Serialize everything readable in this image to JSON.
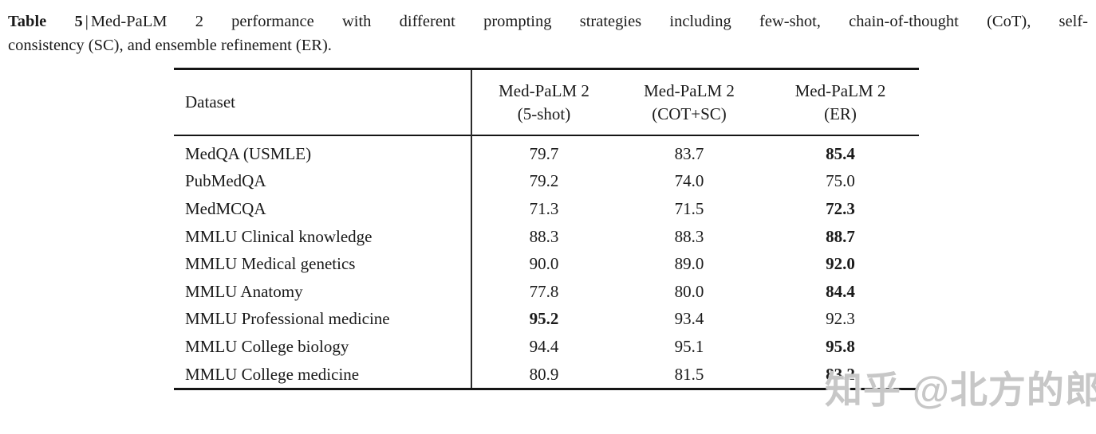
{
  "caption": {
    "label": "Table 5",
    "separator": "|",
    "line1_rest": "Med-PaLM 2 performance with different prompting strategies including few-shot, chain-of-thought (CoT), self-",
    "line2": "consistency (SC), and ensemble refinement (ER)."
  },
  "table": {
    "header": {
      "dataset": "Dataset",
      "col1_line1": "Med-PaLM 2",
      "col1_line2": "(5-shot)",
      "col2_line1": "Med-PaLM 2",
      "col2_line2": "(COT+SC)",
      "col3_line1": "Med-PaLM 2",
      "col3_line2": "(ER)"
    },
    "rows": [
      {
        "dataset": "MedQA (USMLE)",
        "five_shot": "79.7",
        "cot_sc": "83.7",
        "er": "85.4",
        "bold_column": "er"
      },
      {
        "dataset": "PubMedQA",
        "five_shot": "79.2",
        "cot_sc": "74.0",
        "er": "75.0",
        "bold_column": null
      },
      {
        "dataset": "MedMCQA",
        "five_shot": "71.3",
        "cot_sc": "71.5",
        "er": "72.3",
        "bold_column": "er"
      },
      {
        "dataset": "MMLU Clinical knowledge",
        "five_shot": "88.3",
        "cot_sc": "88.3",
        "er": "88.7",
        "bold_column": "er"
      },
      {
        "dataset": "MMLU Medical genetics",
        "five_shot": "90.0",
        "cot_sc": "89.0",
        "er": "92.0",
        "bold_column": "er"
      },
      {
        "dataset": "MMLU Anatomy",
        "five_shot": "77.8",
        "cot_sc": "80.0",
        "er": "84.4",
        "bold_column": "er"
      },
      {
        "dataset": "MMLU Professional medicine",
        "five_shot": "95.2",
        "cot_sc": "93.4",
        "er": "92.3",
        "bold_column": "five_shot"
      },
      {
        "dataset": "MMLU College biology",
        "five_shot": "94.4",
        "cot_sc": "95.1",
        "er": "95.8",
        "bold_column": "er"
      },
      {
        "dataset": "MMLU College medicine",
        "five_shot": "80.9",
        "cot_sc": "81.5",
        "er": "83.2",
        "bold_column": "er"
      }
    ]
  },
  "watermark": {
    "text": "知乎 @北方的郎",
    "color": "#c7c7c7"
  },
  "colors": {
    "background": "#ffffff",
    "text": "#1b1b1b",
    "rule": "#151515"
  }
}
